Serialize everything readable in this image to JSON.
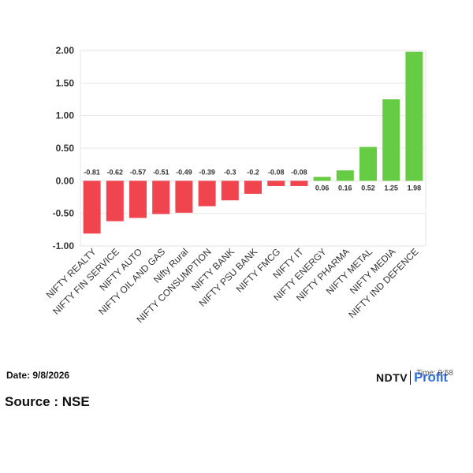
{
  "chart_data": {
    "type": "bar",
    "categories": [
      "NIFTY REALTY",
      "NIFTY FIN SERVICE",
      "NIFTY AUTO",
      "NIFTY OIL AND GAS",
      "Nifty Rural",
      "NIFTY CONSUMPTION",
      "NIFTY BANK",
      "NIFTY PSU BANK",
      "NIFTY FMCG",
      "NIFTY IT",
      "NIFTY ENERGY",
      "NIFTY PHARMA",
      "NIFTY METAL",
      "NIFTY MEDIA",
      "NIFTY IND DEFENCE"
    ],
    "values": [
      -0.81,
      -0.62,
      -0.57,
      -0.51,
      -0.49,
      -0.39,
      -0.3,
      -0.2,
      -0.08,
      -0.08,
      0.06,
      0.16,
      0.52,
      1.25,
      1.98
    ],
    "value_labels": [
      "-0.81",
      "-0.62",
      "-0.57",
      "-0.51",
      "-0.49",
      "-0.39",
      "-0.3",
      "-0.2",
      "-0.08",
      "-0.08",
      "0.06",
      "0.16",
      "0.52",
      "1.25",
      "1.98"
    ],
    "ylim": [
      -1.0,
      2.0
    ],
    "yticks": [
      "-1.00",
      "-0.50",
      "0.00",
      "0.50",
      "1.00",
      "1.50",
      "2.00"
    ],
    "ytick_values": [
      -1.0,
      -0.5,
      0.0,
      0.5,
      1.0,
      1.5,
      2.0
    ],
    "grid": true,
    "colors": {
      "positive": "#66cc44",
      "negative": "#f0444f",
      "grid": "#e6e6e6",
      "axis": "#cccccc"
    }
  },
  "footer": {
    "date": "Date: 9/8/2026",
    "source": "Source : NSE",
    "brand_ndtv": "NDTV",
    "brand_profit": "Profit",
    "time_text": "Time: 9:58"
  }
}
